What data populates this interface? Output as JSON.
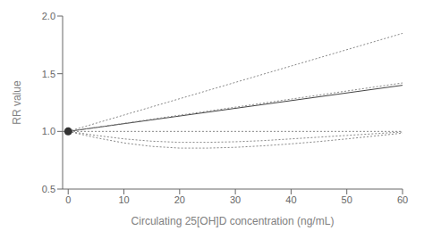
{
  "chart_data": {
    "type": "line",
    "xlabel": "Circulating 25[OH]D concentration (ng/mL)",
    "ylabel": "RR value",
    "xlim": [
      -1,
      60
    ],
    "ylim": [
      0.5,
      2.0
    ],
    "xticks": [
      0,
      10,
      20,
      30,
      40,
      50,
      60
    ],
    "yticks": [
      0.5,
      {
        "value": 1.0,
        "label": "1.0"
      },
      1.5,
      {
        "value": 2.0,
        "label": "2.0"
      }
    ],
    "grid": false,
    "reference_lines": [
      {
        "y": 1.0,
        "color": "#888888",
        "line_style": "dotted"
      }
    ],
    "series": [
      {
        "type": "line",
        "color": "#444444",
        "line_style": "solid",
        "x": [
          0,
          60
        ],
        "values": [
          1.0,
          1.4
        ]
      },
      {
        "type": "line",
        "color": "#888888",
        "line_style": "dotted",
        "x": [
          0,
          60
        ],
        "values": [
          1.0,
          1.85
        ]
      },
      {
        "type": "line",
        "color": "#888888",
        "line_style": "dotted",
        "x": [
          0,
          60
        ],
        "values": [
          1.0,
          1.42
        ]
      },
      {
        "type": "line",
        "color": "#888888",
        "line_style": "dotted",
        "x": [
          0,
          5,
          10,
          15,
          20,
          25,
          30,
          35,
          40,
          45,
          50,
          55,
          60
        ],
        "values": [
          1.0,
          0.965,
          0.935,
          0.915,
          0.905,
          0.905,
          0.91,
          0.92,
          0.935,
          0.95,
          0.965,
          0.98,
          0.995
        ]
      },
      {
        "type": "line",
        "color": "#888888",
        "line_style": "dotted",
        "x": [
          0,
          5,
          10,
          15,
          20,
          25,
          30,
          35,
          40,
          45,
          50,
          55,
          60
        ],
        "values": [
          1.0,
          0.945,
          0.9,
          0.87,
          0.855,
          0.855,
          0.862,
          0.875,
          0.892,
          0.912,
          0.935,
          0.96,
          0.985
        ]
      },
      {
        "type": "scatter",
        "color": "#333333",
        "marker": "circle",
        "x": [
          0
        ],
        "values": [
          1.0
        ]
      }
    ]
  }
}
